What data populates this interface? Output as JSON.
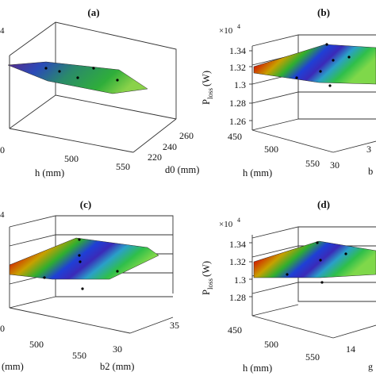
{
  "figure": {
    "panels": [
      {
        "id": "a",
        "title": "(a)",
        "exponent_label": "",
        "z_ticks": [],
        "zlabel_main": "",
        "zlabel_sub": "",
        "zlabel_unit": "",
        "x_ticks": [
          "0",
          "500",
          "550"
        ],
        "xlabel": "h (mm)",
        "y_ticks": [
          "220",
          "240",
          "260"
        ],
        "ylabel": "d0 (mm)",
        "left_edge_text": "4"
      },
      {
        "id": "b",
        "title": "(b)",
        "exponent_label": "×10",
        "exponent_power": "4",
        "z_ticks": [
          "1.34",
          "1.32",
          "1.3",
          "1.28",
          "1.26"
        ],
        "zlabel_main": "P",
        "zlabel_sub": "loss",
        "zlabel_unit": "(W)",
        "x_ticks": [
          "450",
          "500",
          "550"
        ],
        "xlabel": "h (mm)",
        "y_ticks": [
          "30",
          "3"
        ],
        "ylabel": "b",
        "left_edge_text": ""
      },
      {
        "id": "c",
        "title": "(c)",
        "exponent_label": "",
        "z_ticks": [],
        "zlabel_main": "",
        "zlabel_sub": "",
        "zlabel_unit": "",
        "x_ticks": [
          "0",
          "500",
          "550"
        ],
        "xlabel": "(mm)",
        "y_ticks": [
          "30",
          "35"
        ],
        "ylabel": "b2 (mm)",
        "left_edge_text": "4"
      },
      {
        "id": "d",
        "title": "(d)",
        "exponent_label": "×10",
        "exponent_power": "4",
        "z_ticks": [
          "1.34",
          "1.32",
          "1.3",
          "1.28"
        ],
        "zlabel_main": "P",
        "zlabel_sub": "loss",
        "zlabel_unit": "(W)",
        "x_ticks": [
          "450",
          "500",
          "550"
        ],
        "xlabel": "h (mm)",
        "y_ticks": [
          "14",
          "g"
        ],
        "ylabel": "",
        "left_edge_text": ""
      }
    ]
  },
  "chart_data": [
    {
      "type": "surface",
      "panel": "a",
      "title": "(a)",
      "xlabel": "h (mm)",
      "ylabel": "d0 (mm)",
      "x_ticks": [
        500,
        550
      ],
      "y_ticks": [
        220,
        240,
        260
      ],
      "colormap": "green-blue-red (jet-like)"
    },
    {
      "type": "surface",
      "panel": "b",
      "title": "(b)",
      "xlabel": "h (mm)",
      "ylabel": "b",
      "zlabel": "P_loss (W)",
      "z_multiplier": "×10^4",
      "x_ticks": [
        450,
        500,
        550
      ],
      "y_ticks": [
        30
      ],
      "z_ticks": [
        1.26,
        1.28,
        1.3,
        1.32,
        1.34
      ],
      "colormap": "jet"
    },
    {
      "type": "surface",
      "panel": "c",
      "title": "(c)",
      "xlabel": "(mm)",
      "ylabel": "b2 (mm)",
      "x_ticks": [
        500,
        550
      ],
      "y_ticks": [
        30,
        35
      ],
      "colormap": "jet"
    },
    {
      "type": "surface",
      "panel": "d",
      "title": "(d)",
      "xlabel": "h (mm)",
      "zlabel": "P_loss (W)",
      "z_multiplier": "×10^4",
      "x_ticks": [
        450,
        500,
        550
      ],
      "y_ticks": [
        14
      ],
      "z_ticks": [
        1.28,
        1.3,
        1.32,
        1.34
      ],
      "colormap": "jet"
    }
  ]
}
